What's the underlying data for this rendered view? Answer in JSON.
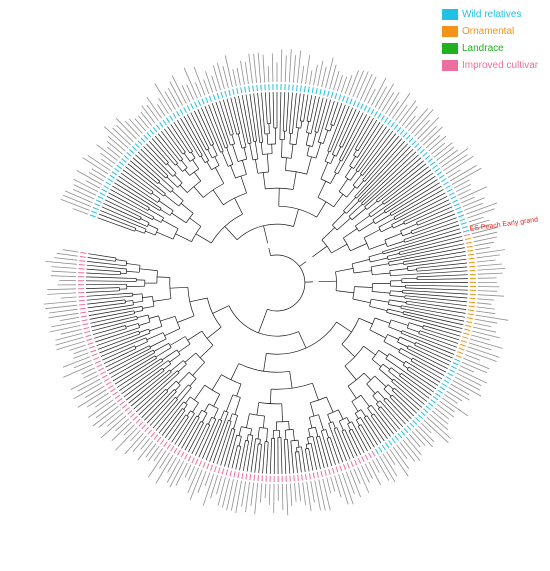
{
  "legend": {
    "items": [
      {
        "label": "Wild relatives",
        "color": "#21c1e4"
      },
      {
        "label": "Ornamental",
        "color": "#f39419"
      },
      {
        "label": "Landrace",
        "color": "#1fb21e"
      },
      {
        "label": "Improved cultivar",
        "color": "#ec6fa0"
      }
    ]
  },
  "highlighted_labels": [
    {
      "text": "ES Peach Early grand",
      "color": "#e8231f"
    }
  ],
  "colors": {
    "branches": "#1a1a1a",
    "tip_labels": "#333333",
    "highlight": "#e8231f"
  },
  "tree": {
    "layout": "circular",
    "group_arcs": [
      {
        "group": "Wild relatives"
      },
      {
        "group": "Ornamental"
      },
      {
        "group": "Wild relatives"
      },
      {
        "group": "Improved cultivar"
      }
    ]
  }
}
